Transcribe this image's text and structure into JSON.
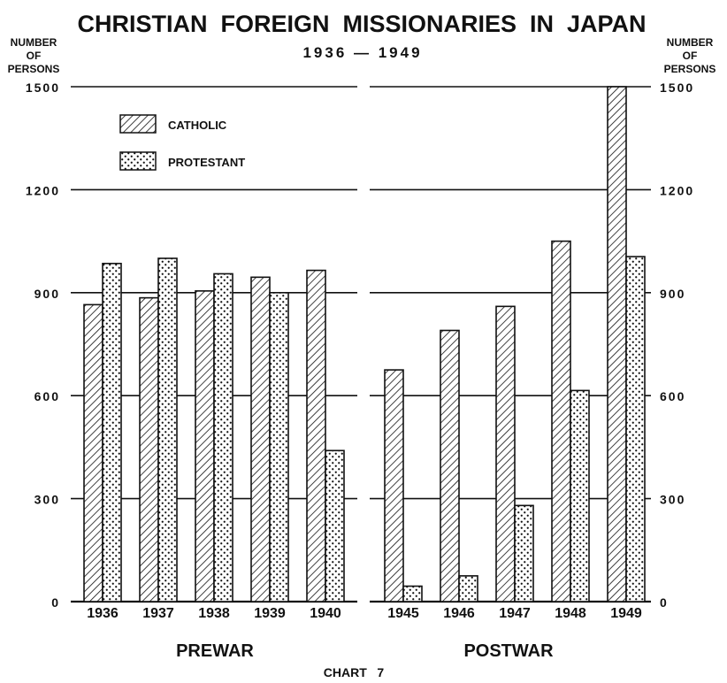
{
  "chart_data": {
    "type": "bar",
    "title": "CHRISTIAN  FOREIGN  MISSIONARIES  IN  JAPAN",
    "subtitle": "1936 — 1949",
    "ylabel_left": [
      "NUMBER",
      "OF",
      "PERSONS"
    ],
    "ylabel_right": [
      "NUMBER",
      "OF",
      "PERSONS"
    ],
    "ylim": [
      0,
      1500
    ],
    "yticks": [
      0,
      300,
      600,
      900,
      1200,
      1500
    ],
    "grid": true,
    "legend_position": "top-left",
    "legend": [
      {
        "name": "CATHOLIC",
        "pattern": "diagonal-hatch"
      },
      {
        "name": "PROTESTANT",
        "pattern": "dots"
      }
    ],
    "series": [
      {
        "name": "CATHOLIC",
        "values": [
          865,
          885,
          905,
          945,
          965,
          675,
          790,
          860,
          1050,
          1500
        ]
      },
      {
        "name": "PROTESTANT",
        "values": [
          985,
          1000,
          955,
          900,
          440,
          45,
          75,
          280,
          615,
          1005
        ]
      }
    ],
    "categories": [
      "1936",
      "1937",
      "1938",
      "1939",
      "1940",
      "1945",
      "1946",
      "1947",
      "1948",
      "1949"
    ],
    "groups": [
      {
        "name": "PREWAR",
        "categories": [
          "1936",
          "1937",
          "1938",
          "1939",
          "1940"
        ]
      },
      {
        "name": "POSTWAR",
        "categories": [
          "1945",
          "1946",
          "1947",
          "1948",
          "1949"
        ]
      }
    ],
    "caption": "CHART   7"
  }
}
